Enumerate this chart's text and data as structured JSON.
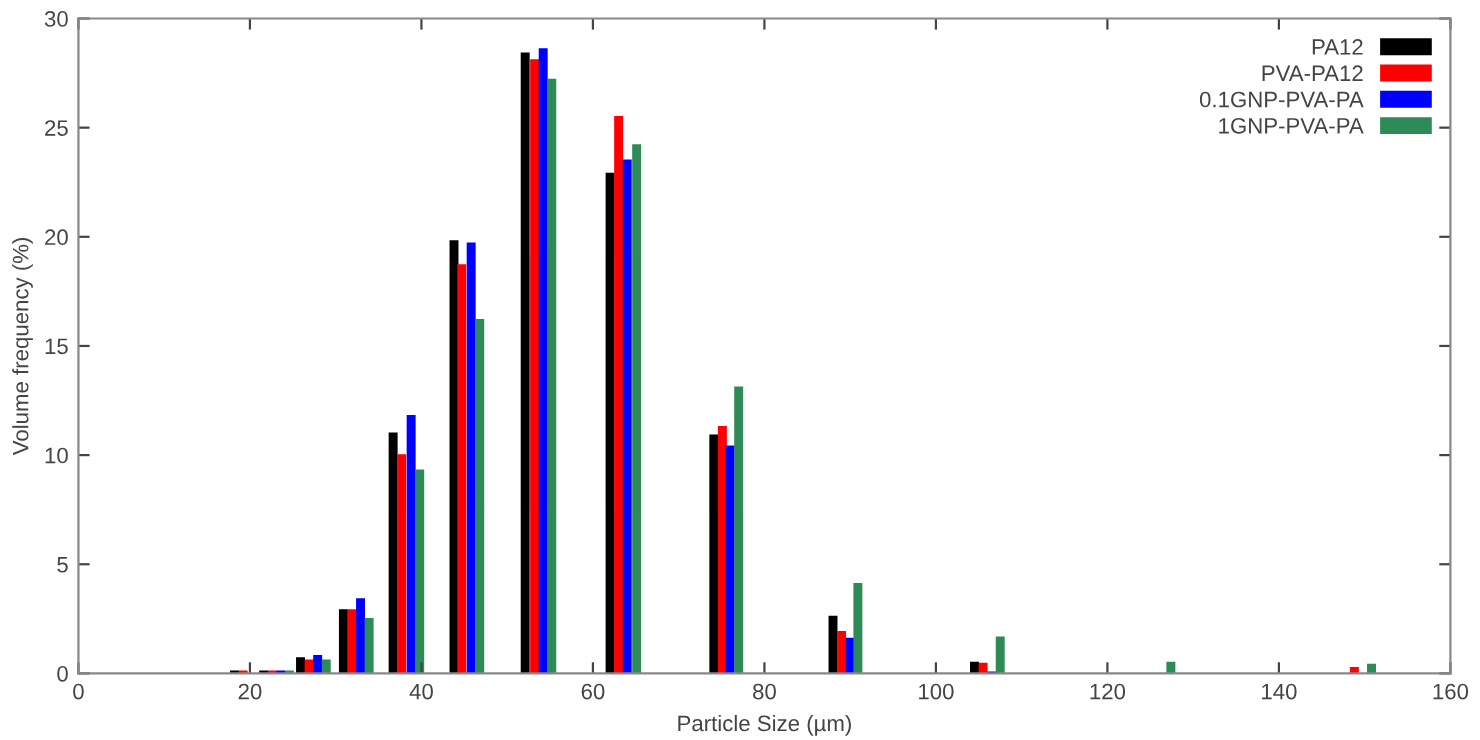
{
  "chart_data": {
    "type": "bar",
    "xlabel": "Particle Size (µm)",
    "ylabel": "Volume frequency (%)",
    "xlim": [
      0,
      160
    ],
    "xticks": [
      0,
      20,
      40,
      60,
      80,
      100,
      120,
      140,
      160
    ],
    "ylim": [
      0,
      30
    ],
    "yticks": [
      0,
      5,
      10,
      15,
      20,
      25,
      30
    ],
    "grid": false,
    "legend": "top right",
    "series": [
      {
        "name": "PA12",
        "color": "#000000",
        "x": [
          18.2,
          21.6,
          25.9,
          30.9,
          36.7,
          43.8,
          52.1,
          62.0,
          74.1,
          88.0,
          104.5
        ],
        "values": [
          0.1,
          0.1,
          0.7,
          2.9,
          11.0,
          19.8,
          28.4,
          22.9,
          10.9,
          2.6,
          0.5
        ]
      },
      {
        "name": "PVA-PA12",
        "color": "#ff0000",
        "x": [
          19.2,
          22.6,
          26.9,
          31.9,
          37.7,
          44.7,
          53.2,
          63.0,
          75.1,
          89.0,
          105.5,
          148.8
        ],
        "values": [
          0.1,
          0.1,
          0.6,
          2.9,
          10.0,
          18.7,
          28.1,
          25.5,
          11.3,
          1.9,
          0.45,
          0.25
        ]
      },
      {
        "name": "0.1GNP-PVA-PA",
        "color": "#0000ff",
        "x": [
          23.6,
          27.9,
          32.9,
          38.8,
          45.8,
          54.2,
          64.0,
          76.0,
          90.0,
          106.5
        ],
        "values": [
          0.1,
          0.8,
          3.4,
          11.8,
          19.7,
          28.6,
          23.5,
          10.4,
          1.6,
          0.05
        ]
      },
      {
        "name": "1GNP-PVA-PA",
        "color": "#2e8b57",
        "x": [
          24.6,
          28.9,
          33.9,
          39.8,
          46.8,
          55.2,
          65.1,
          77.0,
          90.9,
          107.5,
          127.4,
          150.8
        ],
        "values": [
          0.1,
          0.6,
          2.5,
          9.3,
          16.2,
          27.2,
          24.2,
          13.1,
          4.1,
          1.65,
          0.5,
          0.4
        ]
      }
    ]
  }
}
